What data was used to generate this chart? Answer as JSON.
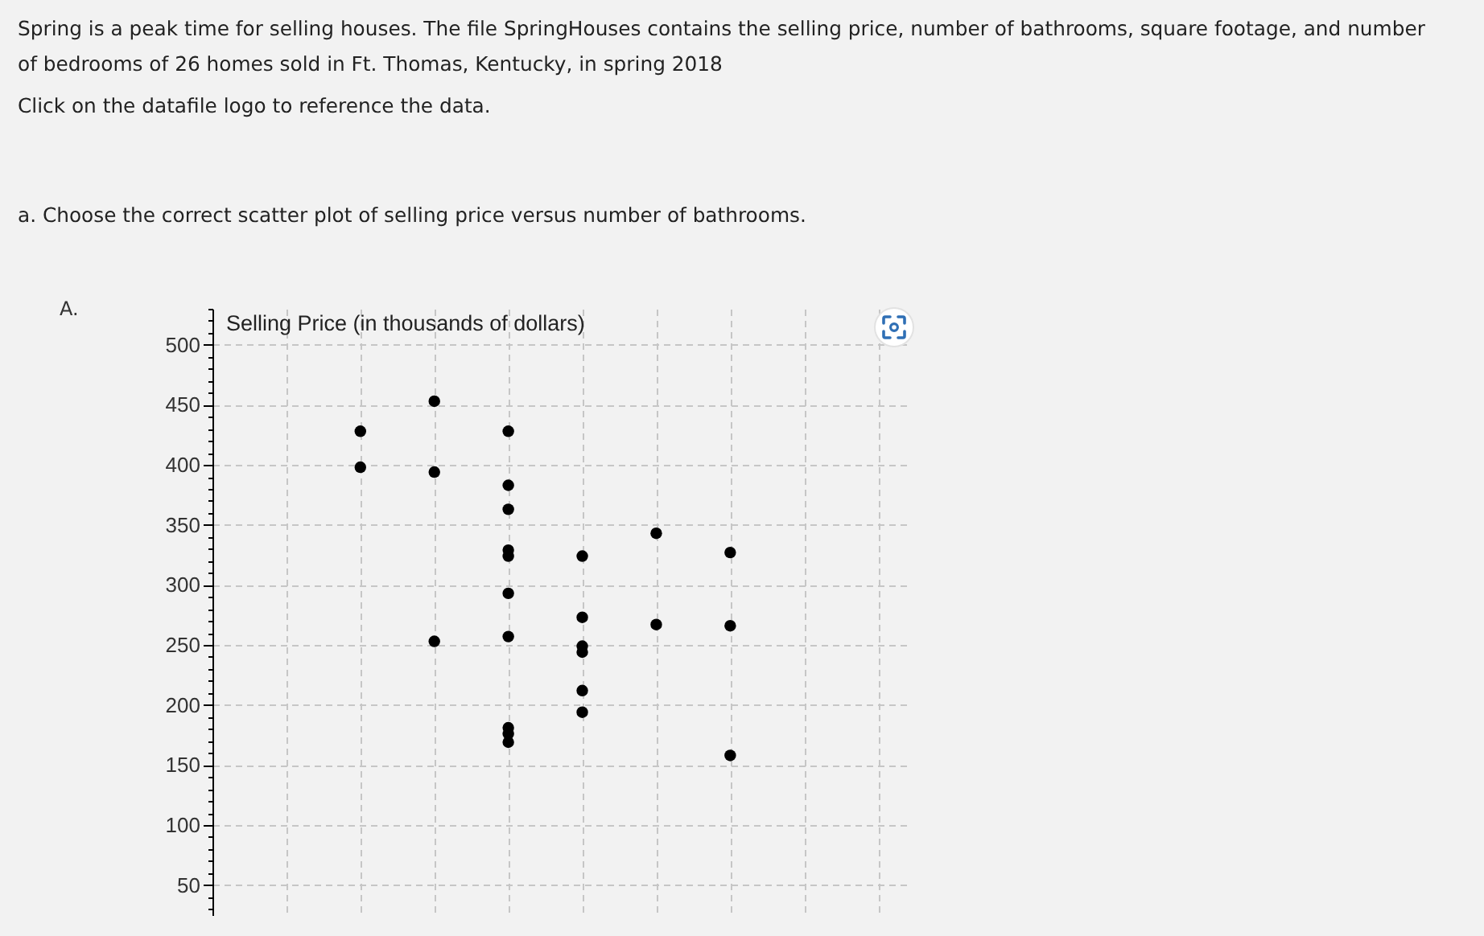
{
  "chart_data": {
    "type": "scatter",
    "title": "Spring is a peak time for selling houses. The file SpringHouses contains the selling price, number of bathrooms, square footage, and number of bedrooms of 26 homes sold in Ft. Thomas, Kentucky, in spring 2018",
    "subtitle": "a. Choose the correct scatter plot of selling price versus number of bathrooms.",
    "annotations": [
      "Click on the datafile logo to reference the data.",
      "A."
    ],
    "ylabel": "Selling Price (in thousands of dollars)",
    "categories": [
      null,
      null,
      null,
      null,
      null,
      null,
      null,
      null,
      null
    ],
    "series": [
      {
        "color": "#000000",
        "values": [
          null,
          428,
          453,
          428,
          324,
          343,
          327,
          null,
          null
        ]
      },
      {
        "color": "#000000",
        "values": [
          null,
          398,
          394,
          383,
          273,
          267,
          266,
          null,
          null
        ]
      },
      {
        "color": "#000000",
        "values": [
          null,
          null,
          253,
          363,
          249,
          null,
          158,
          null,
          null
        ]
      },
      {
        "color": "#000000",
        "values": [
          null,
          null,
          null,
          329,
          244,
          null,
          null,
          null,
          null
        ]
      },
      {
        "color": "#000000",
        "values": [
          null,
          null,
          null,
          324,
          212,
          null,
          null,
          null,
          null
        ]
      },
      {
        "color": "#000000",
        "values": [
          null,
          null,
          null,
          293,
          194,
          null,
          null,
          null,
          null
        ]
      },
      {
        "color": "#000000",
        "values": [
          null,
          null,
          null,
          257,
          null,
          null,
          null,
          null,
          null
        ]
      },
      {
        "color": "#000000",
        "values": [
          null,
          null,
          null,
          181,
          null,
          null,
          null,
          null,
          null
        ]
      },
      {
        "color": "#000000",
        "values": [
          null,
          null,
          null,
          176,
          null,
          null,
          null,
          null,
          null
        ]
      },
      {
        "color": "#000000",
        "values": [
          null,
          null,
          null,
          169,
          null,
          null,
          null,
          null,
          null
        ]
      }
    ],
    "ylim": [
      25,
      530
    ],
    "yticks": [
      {
        "value": 30,
        "label": null
      },
      {
        "value": 40,
        "label": null
      },
      50,
      {
        "value": 60,
        "label": null
      },
      {
        "value": 70,
        "label": null
      },
      {
        "value": 80,
        "label": null
      },
      {
        "value": 90,
        "label": null
      },
      100,
      {
        "value": 110,
        "label": null
      },
      {
        "value": 120,
        "label": null
      },
      {
        "value": 130,
        "label": null
      },
      {
        "value": 140,
        "label": null
      },
      150,
      {
        "value": 160,
        "label": null
      },
      {
        "value": 170,
        "label": null
      },
      {
        "value": 180,
        "label": null
      },
      {
        "value": 190,
        "label": null
      },
      200,
      {
        "value": 210,
        "label": null
      },
      {
        "value": 220,
        "label": null
      },
      {
        "value": 230,
        "label": null
      },
      {
        "value": 240,
        "label": null
      },
      250,
      {
        "value": 260,
        "label": null
      },
      {
        "value": 270,
        "label": null
      },
      {
        "value": 280,
        "label": null
      },
      {
        "value": 290,
        "label": null
      },
      300,
      {
        "value": 310,
        "label": null
      },
      {
        "value": 320,
        "label": null
      },
      {
        "value": 330,
        "label": null
      },
      {
        "value": 340,
        "label": null
      },
      350,
      {
        "value": 360,
        "label": null
      },
      {
        "value": 370,
        "label": null
      },
      {
        "value": 380,
        "label": null
      },
      {
        "value": 390,
        "label": null
      },
      400,
      {
        "value": 410,
        "label": null
      },
      {
        "value": 420,
        "label": null
      },
      {
        "value": 430,
        "label": null
      },
      {
        "value": 440,
        "label": null
      },
      450,
      {
        "value": 460,
        "label": null
      },
      {
        "value": 470,
        "label": null
      },
      {
        "value": 480,
        "label": null
      },
      {
        "value": 490,
        "label": null
      },
      500,
      {
        "value": 510,
        "label": null
      },
      {
        "value": 520,
        "label": null
      },
      {
        "value": 530,
        "label": null
      }
    ],
    "grid": true,
    "marker": "circle",
    "tick_labels": "y"
  }
}
